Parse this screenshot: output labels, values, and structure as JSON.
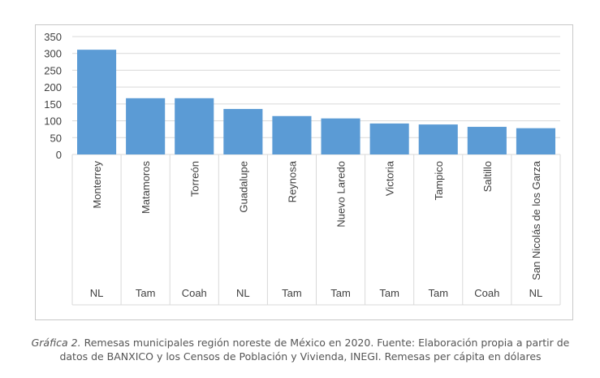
{
  "chart_data": {
    "type": "bar",
    "categories": [
      "Monterrey",
      "Matamoros",
      "Torreón",
      "Guadalupe",
      "Reynosa",
      "Nuevo Laredo",
      "Victoria",
      "Tampico",
      "Saltillo",
      "San Nicolás de los Garza"
    ],
    "states": [
      "NL",
      "Tam",
      "Coah",
      "NL",
      "Tam",
      "Tam",
      "Tam",
      "Tam",
      "Coah",
      "NL"
    ],
    "values": [
      311,
      167,
      167,
      135,
      114,
      107,
      92,
      89,
      82,
      78
    ],
    "ylim": [
      0,
      350
    ],
    "yticks": [
      "0",
      "50",
      "100",
      "150",
      "200",
      "250",
      "300",
      "350"
    ],
    "grid": true,
    "bar_color": "#5b9bd5"
  },
  "caption": {
    "label": "Gráfica 2.",
    "text": " Remesas municipales región noreste de México en 2020. Fuente: Elaboración propia a partir de datos de BANXICO y los Censos de Población y Vivienda, INEGI. Remesas per cápita en dólares"
  }
}
